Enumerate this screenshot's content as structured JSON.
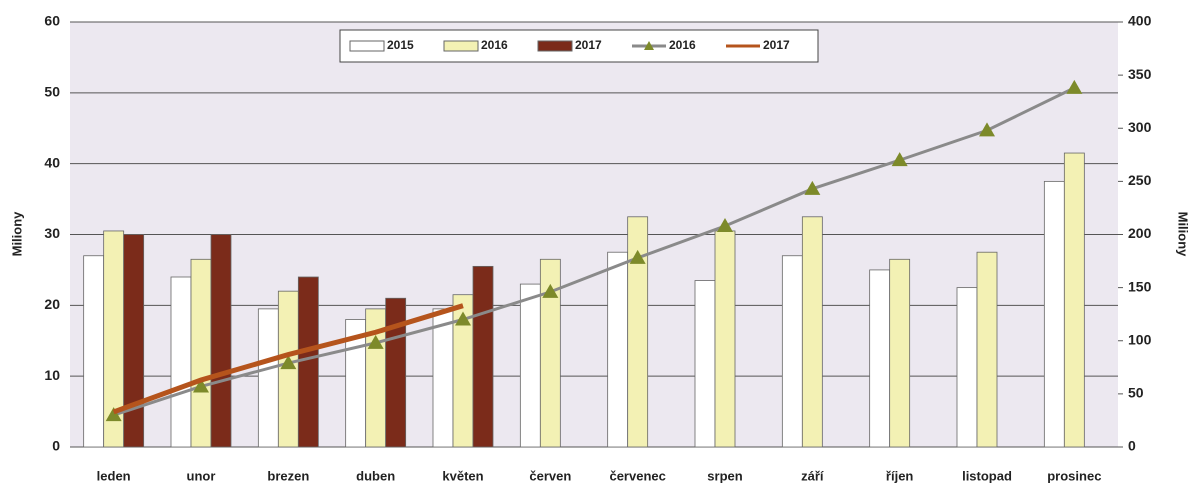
{
  "chart_data": {
    "type": "bar",
    "y_label": "Miliony",
    "y2_label": "Miliony",
    "categories": [
      "leden",
      "unor",
      "brezen",
      "duben",
      "květen",
      "červen",
      "červenec",
      "srpen",
      "září",
      "říjen",
      "listopad",
      "prosinec"
    ],
    "ylim": [
      0,
      60
    ],
    "yticks": [
      0,
      10,
      20,
      30,
      40,
      50,
      60
    ],
    "y2lim": [
      0,
      400
    ],
    "y2ticks": [
      0,
      50,
      100,
      150,
      200,
      250,
      300,
      350,
      400
    ],
    "grid": true,
    "legend": "top",
    "series": [
      {
        "name": "2015",
        "type": "bar",
        "color": "#ffffff",
        "values": [
          27,
          24,
          19.5,
          18,
          19.5,
          23,
          27.5,
          23.5,
          27,
          25,
          22.5,
          37.5
        ]
      },
      {
        "name": "2016",
        "type": "bar",
        "color": "#f3f1b4",
        "values": [
          30.5,
          26.5,
          22,
          19.5,
          21.5,
          26.5,
          32.5,
          30.5,
          32.5,
          26.5,
          27.5,
          41.5
        ]
      },
      {
        "name": "2017",
        "type": "bar",
        "color": "#7b2b1a",
        "values": [
          30,
          30,
          24,
          21,
          25.5,
          null,
          null,
          null,
          null,
          null,
          null,
          null
        ]
      },
      {
        "name": "2016",
        "type": "line",
        "axis": "y2",
        "color": "#8a8a8a",
        "marker_color": "#7d8a2a",
        "values": [
          30,
          57,
          79,
          98,
          120,
          146,
          178,
          208,
          243,
          270,
          298,
          338
        ]
      },
      {
        "name": "2017",
        "type": "line",
        "axis": "y2",
        "color": "#b5541c",
        "values": [
          33,
          63,
          87,
          108,
          133,
          null,
          null,
          null,
          null,
          null,
          null,
          null
        ]
      }
    ]
  }
}
